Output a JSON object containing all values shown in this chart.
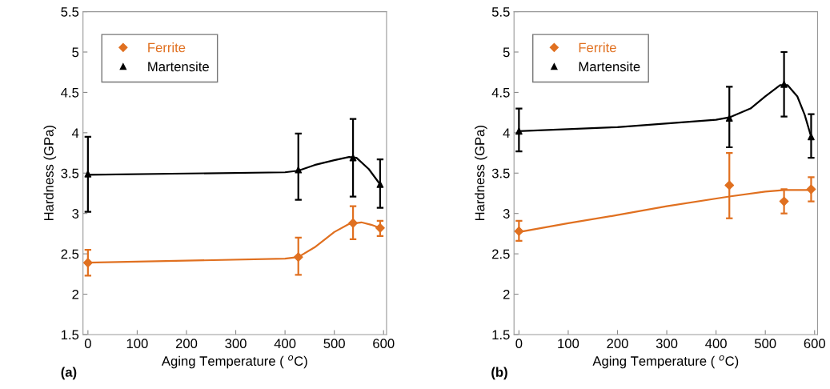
{
  "chart_data": [
    {
      "type": "scatter",
      "xlabel": "Aging Temperature ( $^{o}$C)",
      "ylabel": "Hardness (GPa)",
      "annotations": [
        "(a)"
      ],
      "xlim": [
        -10,
        606
      ],
      "xticks": [
        0,
        100,
        200,
        300,
        400,
        500,
        600
      ],
      "ylim": [
        1.5,
        5.5
      ],
      "yticks": [
        1.5,
        2,
        2.5,
        3,
        3.5,
        4,
        4.5,
        5,
        5.5
      ],
      "grid": false,
      "legend": "top left",
      "series": [
        {
          "name": "Ferrite",
          "color": "#e07020",
          "marker": "diamond",
          "x": [
            0,
            427,
            538,
            593
          ],
          "values": [
            2.39,
            2.46,
            2.88,
            2.82
          ],
          "errors": [
            [
              2.23,
              2.55
            ],
            [
              2.24,
              2.7
            ],
            [
              2.68,
              3.09
            ],
            [
              2.72,
              2.91
            ]
          ]
        },
        {
          "name": "Martensite",
          "color": "#000000",
          "marker": "triangle",
          "x": [
            0,
            427,
            538,
            593
          ],
          "values": [
            3.49,
            3.54,
            3.69,
            3.36
          ],
          "errors": [
            [
              3.02,
              3.95
            ],
            [
              3.17,
              3.99
            ],
            [
              3.21,
              4.17
            ],
            [
              3.07,
              3.67
            ]
          ]
        },
        {
          "type": "line",
          "color": "#e07020",
          "marker": "none",
          "x": [
            0,
            400,
            427,
            460,
            500,
            530,
            555,
            575,
            593
          ],
          "values": [
            2.39,
            2.44,
            2.46,
            2.58,
            2.77,
            2.87,
            2.89,
            2.86,
            2.82
          ]
        },
        {
          "type": "line",
          "color": "#000000",
          "marker": "none",
          "x": [
            0,
            400,
            427,
            460,
            500,
            530,
            545,
            570,
            593
          ],
          "values": [
            3.48,
            3.51,
            3.53,
            3.6,
            3.66,
            3.7,
            3.69,
            3.55,
            3.36
          ]
        }
      ]
    },
    {
      "type": "scatter",
      "xlabel": "Aging Temperature ( $^{o}$C)",
      "ylabel": "Hardness (GPa)",
      "annotations": [
        "(b)"
      ],
      "xlim": [
        -10,
        606
      ],
      "xticks": [
        0,
        100,
        200,
        300,
        400,
        500,
        600
      ],
      "ylim": [
        1.5,
        5.5
      ],
      "yticks": [
        1.5,
        2,
        2.5,
        3,
        3.5,
        4,
        4.5,
        5,
        5.5
      ],
      "grid": false,
      "legend": "top left",
      "series": [
        {
          "name": "Ferrite",
          "color": "#e07020",
          "marker": "diamond",
          "x": [
            0,
            427,
            538,
            593
          ],
          "values": [
            2.78,
            3.35,
            3.15,
            3.3
          ],
          "errors": [
            [
              2.66,
              2.91
            ],
            [
              2.94,
              3.75
            ],
            [
              3.0,
              3.3
            ],
            [
              3.15,
              3.45
            ]
          ]
        },
        {
          "name": "Martensite",
          "color": "#000000",
          "marker": "triangle",
          "x": [
            0,
            427,
            538,
            593
          ],
          "values": [
            4.02,
            4.18,
            4.6,
            3.95
          ],
          "errors": [
            [
              3.77,
              4.3
            ],
            [
              3.82,
              4.57
            ],
            [
              4.2,
              5.0
            ],
            [
              3.69,
              4.23
            ]
          ]
        },
        {
          "type": "line",
          "color": "#e07020",
          "marker": "none",
          "x": [
            0,
            100,
            200,
            300,
            427,
            500,
            540,
            593
          ],
          "values": [
            2.77,
            2.88,
            2.98,
            3.09,
            3.21,
            3.27,
            3.29,
            3.29
          ]
        },
        {
          "type": "line",
          "color": "#000000",
          "marker": "none",
          "x": [
            0,
            200,
            400,
            427,
            470,
            500,
            530,
            545,
            565,
            580,
            593
          ],
          "values": [
            4.02,
            4.07,
            4.16,
            4.19,
            4.3,
            4.45,
            4.59,
            4.59,
            4.45,
            4.22,
            3.95
          ]
        }
      ]
    }
  ]
}
